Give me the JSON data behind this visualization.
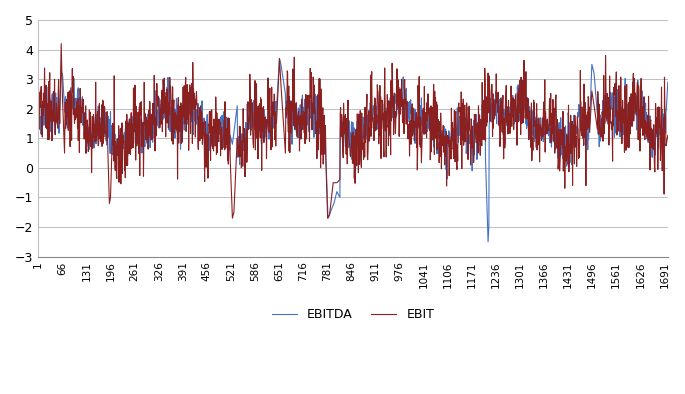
{
  "n": 1700,
  "x_ticks": [
    1,
    66,
    131,
    196,
    261,
    326,
    391,
    456,
    521,
    586,
    651,
    716,
    781,
    846,
    911,
    976,
    1041,
    1106,
    1171,
    1236,
    1301,
    1366,
    1431,
    1496,
    1561,
    1626,
    1691
  ],
  "ylim": [
    -3,
    5
  ],
  "yticks": [
    -3,
    -2,
    -1,
    0,
    1,
    2,
    3,
    4,
    5
  ],
  "ebitda_color": "#4472C4",
  "ebit_color": "#8B2020",
  "line_width": 0.8,
  "bg_color": "#FFFFFF",
  "grid_color": "#C0C0C0",
  "legend_labels": [
    "EBITDA",
    "EBIT"
  ]
}
